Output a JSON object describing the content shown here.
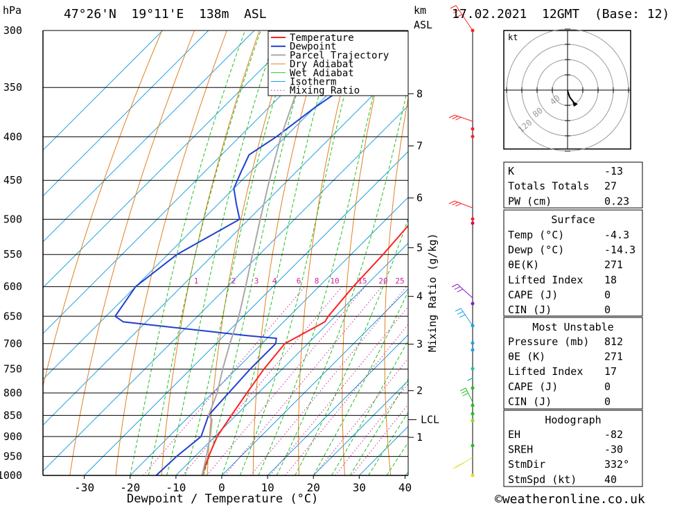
{
  "chart_data": {
    "type": "line",
    "station": "47°26'N  19°11'E  138m  ASL",
    "run": "17.02.2021  12GMT  (Base: 12)",
    "p_unit": "hPa",
    "km_unit": "km",
    "km_unit2": "ASL",
    "xlabel": "Dewpoint / Temperature (°C)",
    "mix_label": "Mixing Ratio (g/kg)",
    "x_ticks": [
      -30,
      -20,
      -10,
      0,
      10,
      20,
      30,
      40
    ],
    "p_ticks": [
      300,
      350,
      400,
      450,
      500,
      550,
      600,
      650,
      700,
      750,
      800,
      850,
      900,
      950,
      1000
    ],
    "km_ticks": [
      {
        "km": 1,
        "p": 902
      },
      {
        "km": 2,
        "p": 795
      },
      {
        "km": 3,
        "p": 701
      },
      {
        "km": 4,
        "p": 616
      },
      {
        "km": 5,
        "p": 540
      },
      {
        "km": 6,
        "p": 472
      },
      {
        "km": 7,
        "p": 410
      },
      {
        "km": 8,
        "p": 356
      }
    ],
    "lcl": {
      "label": "LCL",
      "p": 860
    },
    "mixing_ratios": [
      "1",
      "2",
      "3",
      "4",
      "6",
      "8",
      "10",
      "15",
      "20",
      "25"
    ],
    "legend": [
      "Temperature",
      "Dewpoint",
      "Parcel Trajectory",
      "Dry Adiabat",
      "Wet Adiabat",
      "Isotherm",
      "Mixing Ratio"
    ],
    "colors": {
      "temperature": "#ff2020",
      "dewpoint": "#1f3fd0",
      "parcel": "#a8a8a8",
      "dry": "#e08020",
      "wet": "#20c020",
      "iso": "#20a0e0",
      "mix": "#d020a0"
    },
    "series": [
      {
        "name": "Temperature",
        "points": [
          [
            -4.3,
            1000
          ],
          [
            -7,
            950
          ],
          [
            -9.5,
            900
          ],
          [
            -11,
            850
          ],
          [
            -12.5,
            800
          ],
          [
            -14,
            750
          ],
          [
            -15,
            700
          ],
          [
            -11,
            660
          ],
          [
            -11.5,
            650
          ],
          [
            -12.5,
            600
          ],
          [
            -13,
            550
          ],
          [
            -14,
            500
          ],
          [
            -15,
            480
          ],
          [
            -14.5,
            450
          ],
          [
            -15,
            420
          ],
          [
            -16,
            400
          ],
          [
            -17.5,
            370
          ],
          [
            -20,
            350
          ],
          [
            -23,
            320
          ],
          [
            -25,
            300
          ]
        ]
      },
      {
        "name": "Dewpoint",
        "points": [
          [
            -14.3,
            1000
          ],
          [
            -14,
            950
          ],
          [
            -13,
            900
          ],
          [
            -16,
            850
          ],
          [
            -16.5,
            800
          ],
          [
            -17,
            750
          ],
          [
            -17,
            700
          ],
          [
            -18,
            690
          ],
          [
            -25,
            685
          ],
          [
            -55,
            660
          ],
          [
            -58,
            650
          ],
          [
            -60,
            600
          ],
          [
            -58,
            550
          ],
          [
            -52,
            500
          ],
          [
            -56,
            480
          ],
          [
            -60,
            460
          ],
          [
            -62,
            440
          ],
          [
            -64,
            420
          ],
          [
            -62,
            400
          ],
          [
            -60,
            370
          ],
          [
            -58,
            350
          ],
          [
            -56,
            320
          ],
          [
            -52,
            310
          ],
          [
            -55,
            300
          ]
        ]
      },
      {
        "name": "Parcel Trajectory",
        "points": [
          [
            -4.3,
            1000
          ],
          [
            -7.5,
            950
          ],
          [
            -11,
            900
          ],
          [
            -14.3,
            860
          ],
          [
            -16,
            850
          ],
          [
            -19,
            800
          ],
          [
            -23,
            750
          ],
          [
            -27,
            700
          ],
          [
            -31,
            650
          ],
          [
            -36,
            600
          ],
          [
            -41.5,
            550
          ],
          [
            -47.5,
            500
          ],
          [
            -54,
            450
          ],
          [
            -61,
            400
          ],
          [
            -68,
            350
          ]
        ]
      }
    ]
  },
  "hodograph": {
    "unit": "kt",
    "ring_labels": [
      "40",
      "80",
      "120"
    ]
  },
  "indices": {
    "general": [
      {
        "label": "K",
        "value": "-13"
      },
      {
        "label": "Totals Totals",
        "value": "27"
      },
      {
        "label": "PW (cm)",
        "value": "0.23"
      }
    ],
    "surface": {
      "title": "Surface",
      "rows": [
        {
          "label": "Temp (°C)",
          "value": "-4.3"
        },
        {
          "label": "Dewp (°C)",
          "value": "-14.3"
        },
        {
          "label": "θE(K)",
          "value": "271"
        },
        {
          "label": "Lifted Index",
          "value": "18"
        },
        {
          "label": "CAPE (J)",
          "value": "0"
        },
        {
          "label": "CIN (J)",
          "value": "0"
        }
      ]
    },
    "most_unstable": {
      "title": "Most Unstable",
      "rows": [
        {
          "label": "Pressure (mb)",
          "value": "812"
        },
        {
          "label": "θE (K)",
          "value": "271"
        },
        {
          "label": "Lifted Index",
          "value": "17"
        },
        {
          "label": "CAPE (J)",
          "value": "0"
        },
        {
          "label": "CIN (J)",
          "value": "0"
        }
      ]
    },
    "hodograph": {
      "title": "Hodograph",
      "rows": [
        {
          "label": "EH",
          "value": "-82"
        },
        {
          "label": "SREH",
          "value": "-30"
        },
        {
          "label": "StmDir",
          "value": "332°"
        },
        {
          "label": "StmSpd (kt)",
          "value": "40"
        }
      ]
    }
  },
  "copyright": "©weatheronline.co.uk"
}
